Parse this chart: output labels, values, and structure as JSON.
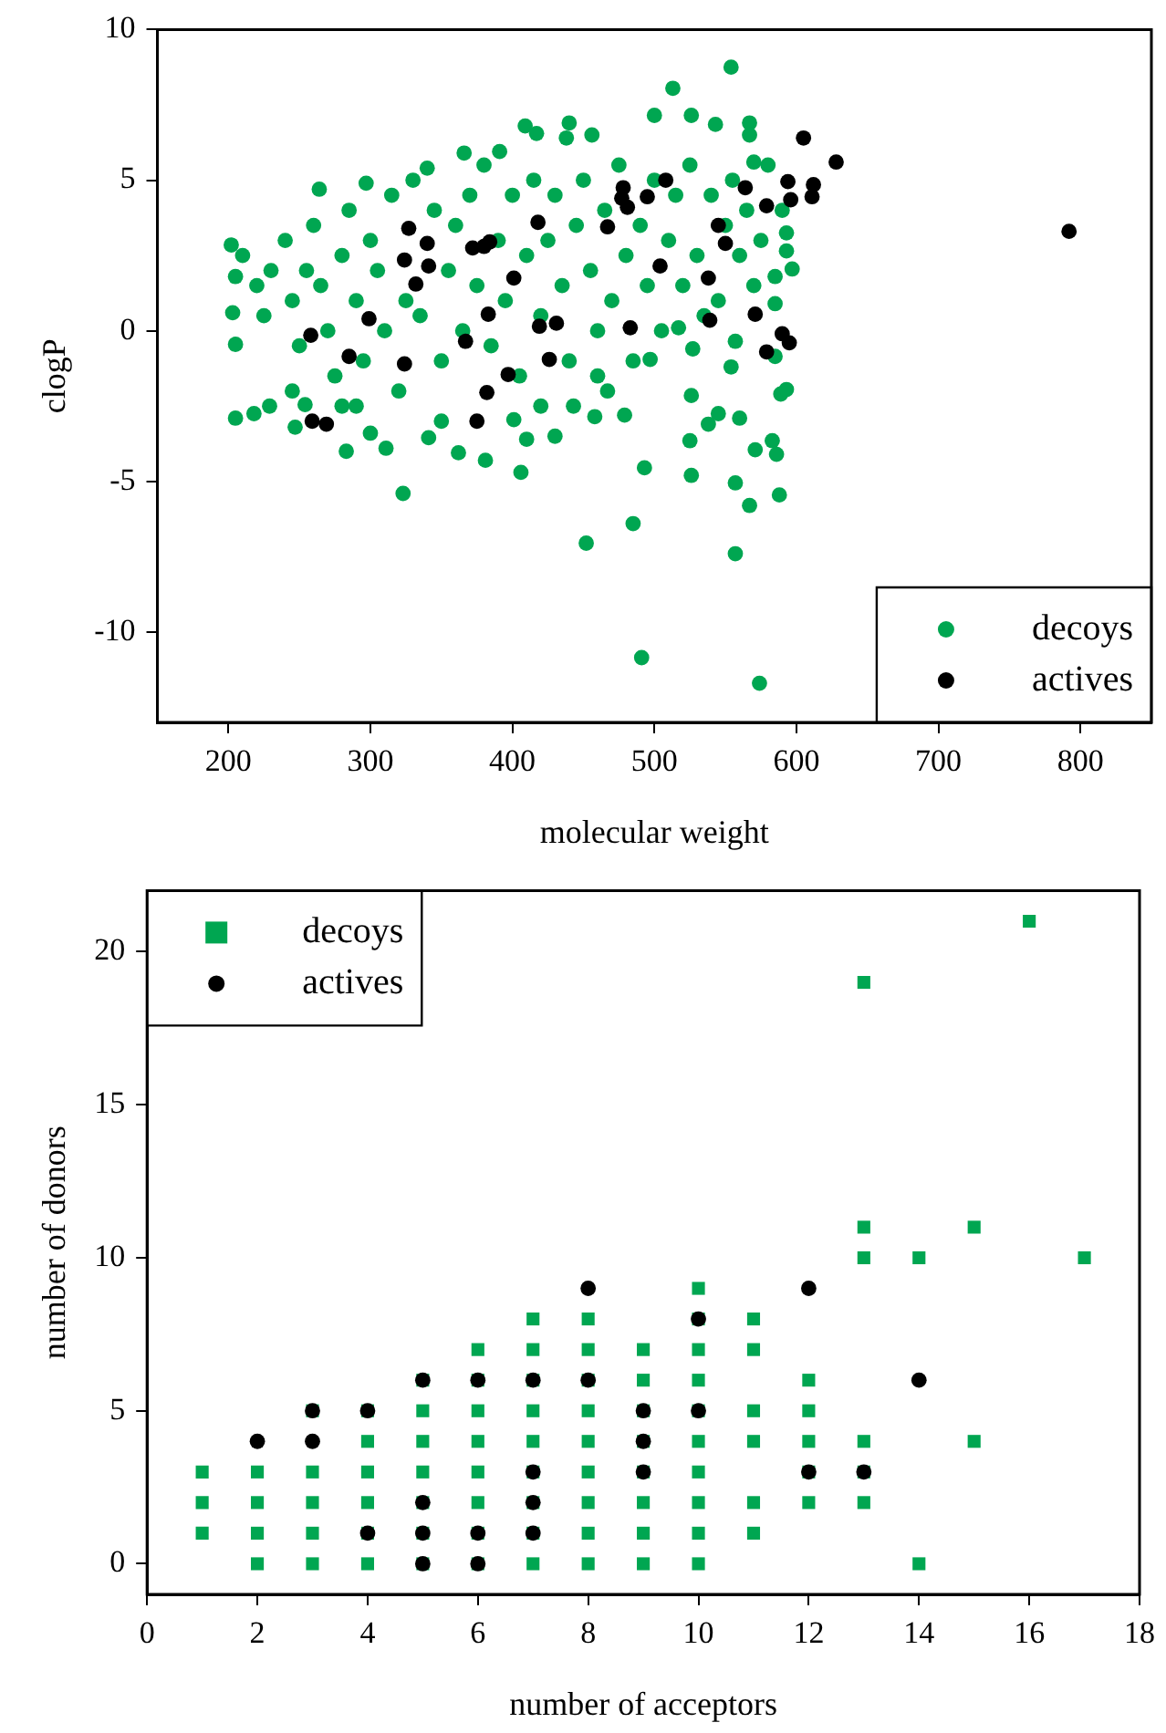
{
  "chart_data": [
    {
      "type": "scatter",
      "xlabel": "molecular weight",
      "ylabel": "clogP",
      "xlim": [
        150,
        850
      ],
      "xticks": [
        200,
        300,
        400,
        500,
        600,
        700,
        800
      ],
      "ylim": [
        -13,
        10
      ],
      "yticks": [
        -10,
        -5,
        0,
        5,
        10
      ],
      "grid": false,
      "legend": "bottom right",
      "series": [
        {
          "name": "decoys",
          "color": "#00a651",
          "marker": "circle",
          "x": [
            554,
            513,
            500,
            526,
            543,
            567,
            567,
            570,
            409,
            417,
            440,
            438,
            456,
            366,
            391,
            340,
            264,
            297,
            202,
            205,
            203,
            205,
            205,
            218,
            229,
            247,
            254,
            280,
            300,
            283,
            311,
            323,
            341,
            362,
            381,
            406,
            410,
            401,
            443,
            458,
            479,
            467,
            497,
            527,
            517,
            526,
            525,
            526,
            493,
            485,
            452,
            491,
            574,
            557,
            557,
            567,
            571,
            586,
            583,
            588,
            545,
            538,
            560,
            589,
            593,
            554,
            557,
            585,
            597,
            593,
            593,
            585,
            585,
            210,
            220,
            225,
            230,
            240,
            245,
            250,
            255,
            260,
            265,
            270,
            275,
            280,
            285,
            290,
            295,
            300,
            305,
            310,
            315,
            320,
            325,
            330,
            335,
            345,
            350,
            355,
            360,
            365,
            370,
            375,
            380,
            385,
            390,
            395,
            400,
            405,
            410,
            415,
            420,
            425,
            430,
            435,
            440,
            445,
            450,
            455,
            460,
            465,
            470,
            475,
            480,
            485,
            490,
            495,
            500,
            505,
            510,
            515,
            520,
            525,
            530,
            535,
            540,
            545,
            550,
            555,
            560,
            565,
            570,
            575,
            580,
            590,
            245,
            290,
            350,
            420,
            430,
            460
          ],
          "values": [
            8.75,
            8.05,
            7.15,
            7.15,
            6.85,
            6.9,
            6.5,
            5.6,
            6.8,
            6.55,
            6.9,
            6.4,
            6.5,
            5.9,
            5.95,
            5.4,
            4.7,
            4.9,
            2.85,
            1.8,
            0.6,
            -0.45,
            -2.9,
            -2.75,
            -2.5,
            -3.2,
            -2.45,
            -2.5,
            -3.4,
            -4.0,
            -3.9,
            -5.4,
            -3.55,
            -4.05,
            -4.3,
            -4.7,
            -3.6,
            -2.95,
            -2.5,
            -2.85,
            -2.8,
            -2.0,
            -0.95,
            -0.6,
            0.1,
            -2.15,
            -3.65,
            -4.8,
            -4.55,
            -6.4,
            -7.05,
            -10.85,
            -11.7,
            -7.4,
            -5.05,
            -5.8,
            -3.95,
            -4.1,
            -3.65,
            -5.45,
            -2.75,
            -3.1,
            -2.9,
            -2.1,
            -1.95,
            -1.2,
            -0.35,
            -0.85,
            2.05,
            2.65,
            3.25,
            1.8,
            0.9,
            2.5,
            1.5,
            0.5,
            2,
            3,
            1,
            -0.5,
            2,
            3.5,
            1.5,
            0,
            -1.5,
            2.5,
            4,
            1,
            -1,
            3,
            2,
            0,
            4.5,
            -2,
            1,
            5,
            0.5,
            4,
            -1,
            2,
            3.5,
            0,
            4.5,
            1.5,
            5.5,
            -0.5,
            3,
            1,
            4.5,
            -1.5,
            2.5,
            5,
            0.5,
            3,
            4.5,
            1.5,
            -1,
            3.5,
            5,
            2,
            0,
            4,
            1,
            5.5,
            2.5,
            -1,
            3.5,
            1.5,
            5,
            0,
            3,
            4.5,
            1.5,
            5.5,
            2.5,
            0.5,
            4.5,
            1,
            3.5,
            5,
            2.5,
            4,
            1.5,
            3,
            5.5,
            4,
            -2,
            -2.5,
            -3,
            -2.5,
            -3.5,
            -1.5
          ]
        },
        {
          "name": "actives",
          "color": "#000000",
          "marker": "circle",
          "x": [
            605,
            628,
            508,
            478,
            477,
            481,
            495,
            564,
            579,
            594,
            596,
            612,
            611,
            792,
            327,
            340,
            324,
            341,
            332,
            372,
            380,
            384,
            418,
            467,
            401,
            545,
            550,
            538,
            504,
            258,
            299,
            285,
            324,
            367,
            383,
            397,
            382,
            375,
            419,
            431,
            426,
            483,
            539,
            571,
            590,
            595,
            579,
            259,
            269
          ],
          "values": [
            6.4,
            5.6,
            5.0,
            4.75,
            4.4,
            4.1,
            4.45,
            4.75,
            4.15,
            4.95,
            4.35,
            4.85,
            4.45,
            3.3,
            3.4,
            2.9,
            2.35,
            2.15,
            1.55,
            2.75,
            2.8,
            2.95,
            3.6,
            3.45,
            1.75,
            3.5,
            2.9,
            1.75,
            2.15,
            -0.15,
            0.4,
            -0.85,
            -1.1,
            -0.35,
            0.55,
            -1.45,
            -2.05,
            -3.0,
            0.15,
            0.25,
            -0.95,
            0.1,
            0.35,
            0.55,
            -0.1,
            -0.4,
            -0.7,
            -3.0,
            -3.1
          ]
        }
      ]
    },
    {
      "type": "scatter",
      "xlabel": "number of acceptors",
      "ylabel": "number of donors",
      "xlim": [
        0,
        18
      ],
      "xticks": [
        0,
        2,
        4,
        6,
        8,
        10,
        12,
        14,
        16,
        18
      ],
      "ylim": [
        -1,
        22
      ],
      "yticks": [
        0,
        5,
        10,
        15,
        20
      ],
      "grid": false,
      "legend": "top left",
      "series": [
        {
          "name": "decoys",
          "color": "#00a651",
          "marker": "square",
          "x": [
            1,
            1,
            1,
            2,
            2,
            2,
            2,
            3,
            3,
            3,
            3,
            3,
            4,
            4,
            4,
            4,
            4,
            4,
            5,
            5,
            5,
            5,
            5,
            5,
            5,
            6,
            6,
            6,
            6,
            6,
            6,
            6,
            6,
            7,
            7,
            7,
            7,
            7,
            7,
            7,
            7,
            7,
            8,
            8,
            8,
            8,
            8,
            8,
            8,
            8,
            8,
            9,
            9,
            9,
            9,
            9,
            9,
            9,
            9,
            10,
            10,
            10,
            10,
            10,
            10,
            10,
            10,
            10,
            10,
            11,
            11,
            11,
            11,
            11,
            11,
            12,
            12,
            12,
            12,
            12,
            13,
            13,
            13,
            13,
            13,
            13,
            14,
            14,
            15,
            15,
            16,
            17
          ],
          "values": [
            1,
            2,
            3,
            0,
            1,
            2,
            3,
            0,
            1,
            2,
            3,
            5,
            0,
            1,
            2,
            3,
            4,
            5,
            0,
            1,
            2,
            3,
            4,
            5,
            6,
            0,
            1,
            2,
            3,
            4,
            5,
            6,
            7,
            0,
            1,
            2,
            3,
            4,
            5,
            6,
            7,
            8,
            0,
            1,
            2,
            3,
            4,
            5,
            6,
            7,
            8,
            0,
            1,
            2,
            3,
            4,
            5,
            6,
            7,
            0,
            1,
            2,
            3,
            4,
            5,
            6,
            7,
            8,
            9,
            1,
            2,
            4,
            5,
            7,
            8,
            2,
            3,
            4,
            5,
            6,
            2,
            3,
            4,
            10,
            11,
            19,
            0,
            10,
            4,
            11,
            21,
            10
          ]
        },
        {
          "name": "actives",
          "color": "#000000",
          "marker": "circle",
          "x": [
            2,
            3,
            3,
            4,
            4,
            5,
            5,
            5,
            5,
            6,
            6,
            6,
            7,
            7,
            7,
            7,
            8,
            8,
            9,
            9,
            9,
            10,
            10,
            12,
            12,
            13,
            14
          ],
          "values": [
            4,
            4,
            5,
            5,
            1,
            6,
            2,
            1,
            0,
            6,
            1,
            0,
            6,
            3,
            2,
            1,
            9,
            6,
            5,
            4,
            3,
            8,
            5,
            9,
            3,
            3,
            6
          ]
        }
      ]
    }
  ]
}
